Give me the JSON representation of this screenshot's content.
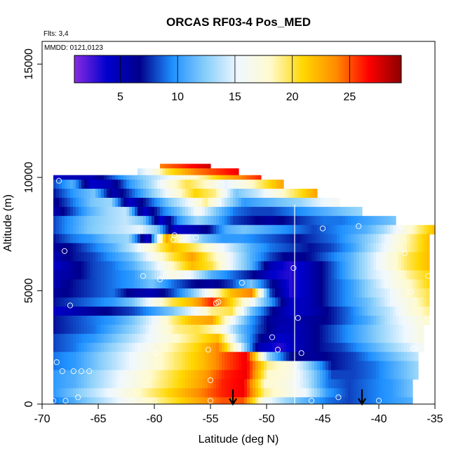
{
  "chart_data": {
    "type": "heatmap",
    "title": "ORCAS RF03-4 Pos_MED",
    "annotations": {
      "flights": "Flts: 3,4",
      "dates": "MMDD: 0121,0123"
    },
    "xlabel": "Latitude (deg N)",
    "ylabel": "Altitude (m)",
    "xlim": [
      -70,
      -35
    ],
    "ylim": [
      0,
      16000
    ],
    "x_ticks": [
      -70,
      -65,
      -60,
      -55,
      -50,
      -45,
      -40,
      -35
    ],
    "y_ticks": [
      0,
      5000,
      10000,
      15000
    ],
    "colorbar": {
      "min": 1,
      "max": 29.5,
      "ticks": [
        5,
        10,
        15,
        20,
        25
      ],
      "colors": [
        "#8a2be2",
        "#0000cd",
        "#00008b",
        "#1e90ff",
        "#87cefa",
        "#f0f8ff",
        "#fffacd",
        "#ffd700",
        "#ff8c00",
        "#ff0000",
        "#8b0000"
      ]
    },
    "vertical_lines": [
      -47.5
    ],
    "arrows_latitude": [
      -53,
      -41.5
    ],
    "profile_rows": [
      {
        "y0": 10400,
        "y1": 10600,
        "x0": -59.5,
        "x1": -55,
        "values": [
          24,
          25,
          26,
          27,
          28
        ]
      },
      {
        "y0": 10100,
        "y1": 10400,
        "x0": -61.5,
        "x1": -52.5,
        "values": [
          14,
          16,
          20,
          22,
          24,
          25,
          26,
          27
        ]
      },
      {
        "y0": 9900,
        "y1": 10100,
        "x0": -69,
        "x1": -50.5,
        "values": [
          4,
          5,
          5,
          8,
          11,
          13,
          15,
          17,
          19,
          22,
          24,
          26
        ]
      },
      {
        "y0": 9500,
        "y1": 9900,
        "x0": -69,
        "x1": -48.5,
        "values": [
          8,
          11,
          4,
          5,
          10,
          13,
          17,
          20,
          18,
          15,
          17,
          20,
          23
        ]
      },
      {
        "y0": 9100,
        "y1": 9500,
        "x0": -69,
        "x1": -45.5,
        "values": [
          7,
          10,
          12,
          5,
          9,
          13,
          17,
          21,
          19,
          12,
          14,
          17,
          20,
          23
        ]
      },
      {
        "y0": 8700,
        "y1": 9100,
        "x0": -69,
        "x1": -43.5,
        "values": [
          6,
          9,
          12,
          13,
          4,
          8,
          12,
          15,
          19,
          14,
          10,
          11,
          12,
          13,
          15,
          16
        ]
      },
      {
        "y0": 8300,
        "y1": 8700,
        "x0": -69,
        "x1": -41.5,
        "values": [
          5,
          8,
          11,
          13,
          14,
          4,
          9,
          12,
          16,
          12,
          9,
          8,
          8,
          9,
          10,
          11,
          12,
          13
        ]
      },
      {
        "y0": 7900,
        "y1": 8300,
        "x0": -69,
        "x1": -38.5,
        "values": [
          8,
          10,
          12,
          13,
          14,
          12,
          4,
          10,
          13,
          11,
          8,
          7,
          6,
          7,
          8,
          9,
          9,
          10,
          11,
          12
        ]
      },
      {
        "y0": 7500,
        "y1": 7900,
        "x0": -69,
        "x1": -35,
        "values": [
          8,
          10,
          12,
          13,
          14,
          15,
          12,
          4,
          5,
          7,
          11,
          12,
          11,
          10,
          9,
          8,
          9,
          10,
          11,
          13,
          16,
          19,
          22
        ]
      },
      {
        "y0": 7100,
        "y1": 7500,
        "x0": -69,
        "x1": -35.5,
        "values": [
          7,
          9,
          10,
          12,
          13,
          4,
          23,
          16,
          12,
          10,
          10,
          9,
          8,
          7,
          8,
          9,
          11,
          13,
          16,
          19,
          22
        ]
      },
      {
        "y0": 6700,
        "y1": 7100,
        "x0": -69,
        "x1": -35.5,
        "values": [
          6,
          7,
          9,
          11,
          14,
          18,
          22,
          20,
          17,
          14,
          11,
          9,
          8,
          7,
          8,
          10,
          13,
          16,
          19,
          22
        ]
      },
      {
        "y0": 6300,
        "y1": 6700,
        "x0": -69,
        "x1": -35.5,
        "values": [
          5,
          7,
          8,
          10,
          12,
          16,
          20,
          23,
          19,
          15,
          11,
          8,
          6,
          7,
          9,
          11,
          14,
          17,
          20,
          22
        ]
      },
      {
        "y0": 5900,
        "y1": 6300,
        "x0": -69,
        "x1": -35.5,
        "values": [
          4,
          6,
          8,
          9,
          11,
          14,
          18,
          22,
          20,
          15,
          11,
          5,
          3,
          5,
          8,
          11,
          14,
          17,
          20,
          22
        ]
      },
      {
        "y0": 5500,
        "y1": 5900,
        "x0": -69,
        "x1": -35.5,
        "values": [
          5,
          6,
          8,
          9,
          10,
          13,
          17,
          15,
          11,
          9,
          7,
          4,
          3,
          5,
          8,
          11,
          14,
          16,
          19,
          21
        ]
      },
      {
        "y0": 5100,
        "y1": 5500,
        "x0": -69,
        "x1": -35.5,
        "values": [
          5,
          7,
          8,
          9,
          10,
          12,
          9,
          7,
          6,
          8,
          12,
          7,
          3,
          5,
          8,
          10,
          13,
          16,
          18,
          21
        ]
      },
      {
        "y0": 4700,
        "y1": 5100,
        "x0": -69,
        "x1": -35.5,
        "values": [
          6,
          7,
          8,
          9,
          6,
          5,
          8,
          12,
          17,
          22,
          24,
          8,
          3,
          5,
          8,
          10,
          13,
          15,
          18,
          20
        ]
      },
      {
        "y0": 4300,
        "y1": 4700,
        "x0": -69,
        "x1": -35.5,
        "values": [
          7,
          8,
          9,
          10,
          12,
          16,
          20,
          22,
          26,
          21,
          16,
          10,
          4,
          5,
          8,
          10,
          12,
          15,
          17,
          20
        ]
      },
      {
        "y0": 3900,
        "y1": 4300,
        "x0": -69,
        "x1": -35.5,
        "values": [
          4,
          5,
          6,
          7,
          8,
          10,
          12,
          15,
          19,
          20,
          12,
          7,
          4,
          5,
          7,
          9,
          12,
          14,
          17,
          19
        ]
      },
      {
        "y0": 3500,
        "y1": 3900,
        "x0": -69,
        "x1": -35.5,
        "values": [
          7,
          8,
          9,
          10,
          12,
          15,
          19,
          22,
          23,
          16,
          10,
          6,
          5,
          6,
          7,
          9,
          11,
          14,
          16,
          18
        ]
      },
      {
        "y0": 3100,
        "y1": 3500,
        "x0": -69,
        "x1": -36,
        "values": [
          7,
          8,
          9,
          11,
          13,
          16,
          19,
          20,
          18,
          12,
          8,
          5,
          5,
          7,
          9,
          11,
          13,
          15,
          17
        ]
      },
      {
        "y0": 2700,
        "y1": 3100,
        "x0": -69,
        "x1": -36,
        "values": [
          8,
          9,
          10,
          12,
          14,
          16,
          18,
          20,
          22,
          13,
          7,
          4,
          5,
          7,
          9,
          11,
          13,
          15,
          17
        ]
      },
      {
        "y0": 2300,
        "y1": 2700,
        "x0": -69,
        "x1": -36,
        "values": [
          8,
          9,
          11,
          13,
          15,
          17,
          19,
          21,
          24,
          16,
          5,
          3,
          5,
          7,
          8,
          10,
          12,
          14,
          16
        ]
      },
      {
        "y0": 1900,
        "y1": 2300,
        "x0": -69,
        "x1": -36.5,
        "values": [
          9,
          10,
          12,
          14,
          16,
          18,
          20,
          22,
          25,
          27,
          13,
          7,
          6,
          7,
          8,
          10,
          12,
          14
        ]
      },
      {
        "y0": 1500,
        "y1": 1900,
        "x0": -69,
        "x1": -36.5,
        "values": [
          9,
          10,
          12,
          14,
          16,
          18,
          20,
          22,
          25,
          27,
          19,
          17,
          12,
          7,
          8,
          9,
          11,
          13
        ]
      },
      {
        "y0": 1100,
        "y1": 1500,
        "x0": -69,
        "x1": -36.5,
        "values": [
          10,
          11,
          13,
          15,
          17,
          19,
          21,
          23,
          26,
          27,
          18,
          17,
          13,
          8,
          8,
          9,
          11,
          13
        ]
      },
      {
        "y0": 700,
        "y1": 1100,
        "x0": -69,
        "x1": -37,
        "values": [
          10,
          11,
          13,
          15,
          17,
          19,
          21,
          23,
          26,
          27,
          18,
          17,
          14,
          9,
          8,
          9,
          10,
          12
        ]
      },
      {
        "y0": 300,
        "y1": 700,
        "x0": -69,
        "x1": -37,
        "values": [
          10,
          12,
          14,
          16,
          18,
          20,
          22,
          24,
          26,
          27,
          19,
          17,
          15,
          10,
          8,
          9,
          10,
          12
        ]
      },
      {
        "y0": 0,
        "y1": 300,
        "x0": -69,
        "x1": -37,
        "values": [
          9,
          11,
          13,
          15,
          17,
          19,
          21,
          23,
          25,
          25,
          16,
          13,
          11,
          9,
          8,
          9,
          10,
          11
        ]
      }
    ],
    "sample_points": [
      {
        "x": -68.5,
        "y": 9850
      },
      {
        "x": -68,
        "y": 6750
      },
      {
        "x": -67.5,
        "y": 4350
      },
      {
        "x": -68.7,
        "y": 1850
      },
      {
        "x": -68.2,
        "y": 1450
      },
      {
        "x": -67.2,
        "y": 1450
      },
      {
        "x": -66.5,
        "y": 1450
      },
      {
        "x": -65.8,
        "y": 1450
      },
      {
        "x": -69,
        "y": 150
      },
      {
        "x": -67.9,
        "y": 150
      },
      {
        "x": -66.8,
        "y": 300
      },
      {
        "x": -62,
        "y": 150
      },
      {
        "x": -60,
        "y": 150
      },
      {
        "x": -55,
        "y": 150
      },
      {
        "x": -61,
        "y": 5650
      },
      {
        "x": -59.5,
        "y": 5500
      },
      {
        "x": -58.2,
        "y": 7450
      },
      {
        "x": -58.3,
        "y": 7250
      },
      {
        "x": -56.3,
        "y": 7350
      },
      {
        "x": -54.5,
        "y": 4450
      },
      {
        "x": -54.3,
        "y": 4500
      },
      {
        "x": -52.2,
        "y": 5350
      },
      {
        "x": -49.5,
        "y": 2950
      },
      {
        "x": -49,
        "y": 2400
      },
      {
        "x": -55.2,
        "y": 2400
      },
      {
        "x": -55,
        "y": 1050
      },
      {
        "x": -59.9,
        "y": 2250
      },
      {
        "x": -47.6,
        "y": 6000
      },
      {
        "x": -47.2,
        "y": 3800
      },
      {
        "x": -46.9,
        "y": 2250
      },
      {
        "x": -45,
        "y": 7750
      },
      {
        "x": -41.8,
        "y": 7850
      },
      {
        "x": -38,
        "y": 7850
      },
      {
        "x": -37.7,
        "y": 6650
      },
      {
        "x": -37.2,
        "y": 4950
      },
      {
        "x": -36.9,
        "y": 2450
      },
      {
        "x": -35.6,
        "y": 5650
      },
      {
        "x": -43.6,
        "y": 300
      },
      {
        "x": -46,
        "y": 150
      },
      {
        "x": -40,
        "y": 150
      }
    ]
  }
}
